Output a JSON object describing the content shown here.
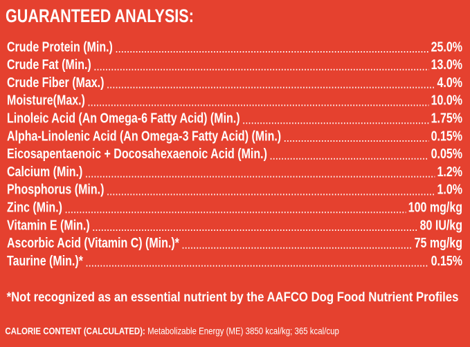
{
  "header": {
    "title": "GUARANTEED ANALYSIS:"
  },
  "table": {
    "rows": [
      [
        "Crude Protein (Min.)",
        "25.0%"
      ],
      [
        "Crude Fat (Min.)",
        "13.0%"
      ],
      [
        "Crude Fiber (Max.)",
        "4.0%"
      ],
      [
        "Moisture(Max.)",
        "10.0%"
      ],
      [
        "Linoleic Acid (An Omega-6 Fatty Acid) (Min.)",
        "1.75%"
      ],
      [
        "Alpha-Linolenic Acid (An Omega-3 Fatty Acid) (Min.)",
        "0.15%"
      ],
      [
        "Eicosapentaenoic + Docosahexaenoic Acid (Min.)",
        "0.05%"
      ],
      [
        "Calcium (Min.)",
        "1.2%"
      ],
      [
        "Phosphorus (Min.)",
        "1.0%"
      ],
      [
        "Zinc (Min.)",
        "100 mg/kg"
      ],
      [
        "Vitamin E (Min.)",
        "80 IU/kg"
      ],
      [
        "Ascorbic Acid (Vitamin C) (Min.)*",
        "75 mg/kg"
      ],
      [
        "Taurine (Min.)*",
        "0.15%"
      ]
    ]
  },
  "footnote": "*Not recognized as an essential nutrient by the AAFCO Dog Food Nutrient Profiles",
  "calorie_content": {
    "label": "CALORIE CONTENT (CALCULATED):",
    "text": "Metabolizable Energy (ME) 3850 kcal/kg; 365 kcal/cup"
  }
}
